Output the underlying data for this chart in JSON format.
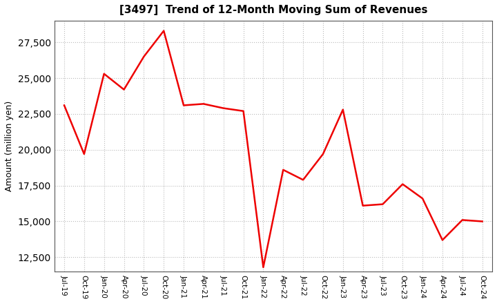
{
  "title": "[3497]  Trend of 12-Month Moving Sum of Revenues",
  "ylabel": "Amount (million yen)",
  "line_color": "#ee0000",
  "line_width": 1.8,
  "background_color": "#ffffff",
  "grid_color": "#bbbbbb",
  "x_labels": [
    "Jul-19",
    "Oct-19",
    "Jan-20",
    "Apr-20",
    "Jul-20",
    "Oct-20",
    "Jan-21",
    "Apr-21",
    "Jul-21",
    "Oct-21",
    "Jan-22",
    "Apr-22",
    "Jul-22",
    "Oct-22",
    "Jan-23",
    "Apr-23",
    "Jul-23",
    "Oct-23",
    "Jan-24",
    "Apr-24",
    "Jul-24",
    "Oct-24"
  ],
  "values": [
    23100,
    19700,
    25300,
    24200,
    26500,
    28300,
    23100,
    23200,
    22900,
    22700,
    11800,
    18600,
    17900,
    19700,
    22800,
    16100,
    16200,
    17600,
    16600,
    13700,
    15100,
    15000
  ],
  "ylim": [
    11500,
    29000
  ],
  "yticks": [
    12500,
    15000,
    17500,
    20000,
    22500,
    25000,
    27500
  ]
}
